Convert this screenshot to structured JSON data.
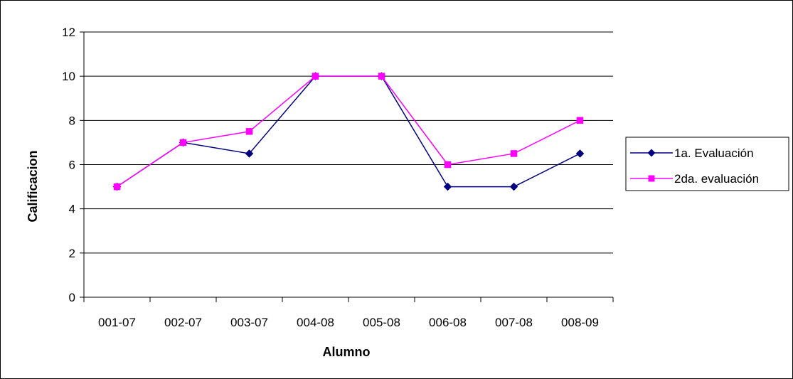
{
  "chart_data": {
    "type": "line",
    "categories": [
      "001-07",
      "002-07",
      "003-07",
      "004-08",
      "005-08",
      "006-08",
      "007-08",
      "008-09"
    ],
    "series": [
      {
        "name": "1a. Evaluación",
        "values": [
          5,
          7,
          6.5,
          10,
          10,
          5,
          5,
          6.5
        ],
        "color": "#000080",
        "marker": "diamond"
      },
      {
        "name": "2da. evaluación",
        "values": [
          5,
          7,
          7.5,
          10,
          10,
          6,
          6.5,
          8
        ],
        "color": "#ff00ff",
        "marker": "square"
      }
    ],
    "xlabel": "Alumno",
    "ylabel": "Calificacion",
    "ylim": [
      0,
      12
    ],
    "yticks": [
      0,
      2,
      4,
      6,
      8,
      10,
      12
    ],
    "grid": "horizontal",
    "legend": "right"
  }
}
